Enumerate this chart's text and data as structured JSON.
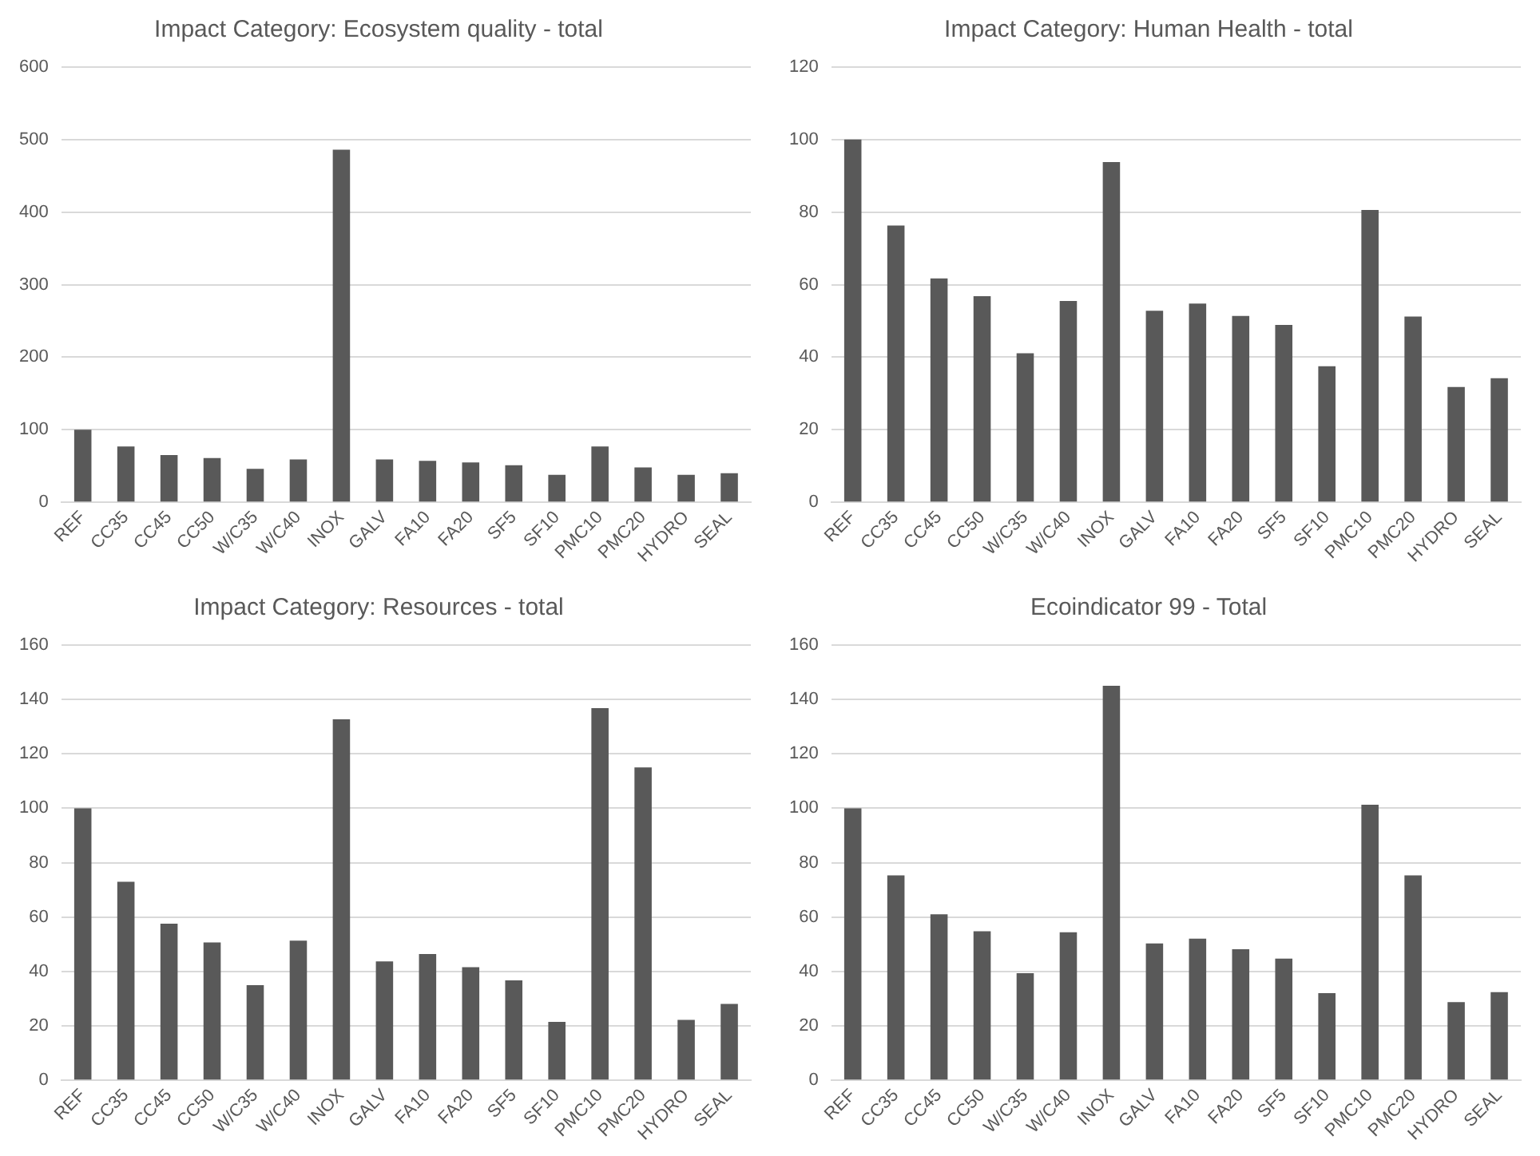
{
  "chart_data": [
    {
      "type": "bar",
      "title": "Impact Category: Ecosystem quality - total",
      "categories": [
        "REF",
        "CC35",
        "CC45",
        "CC50",
        "W/C35",
        "W/C40",
        "INOX",
        "GALV",
        "FA10",
        "FA20",
        "SF5",
        "SF10",
        "PMC10",
        "PMC20",
        "HYDRO",
        "SEAL"
      ],
      "color": "#595959",
      "values": [
        100,
        77,
        65,
        61,
        46,
        59,
        486,
        59,
        57,
        55,
        51,
        38,
        77,
        48,
        38,
        40
      ],
      "ylim": [
        0,
        600
      ],
      "yticks": [
        0,
        100,
        200,
        300,
        400,
        500,
        600
      ],
      "grid": "y",
      "legend": false
    },
    {
      "type": "bar",
      "title": "Impact Category: Human Health - total",
      "categories": [
        "REF",
        "CC35",
        "CC45",
        "CC50",
        "W/C35",
        "W/C40",
        "INOX",
        "GALV",
        "FA10",
        "FA20",
        "SF5",
        "SF10",
        "PMC10",
        "PMC20",
        "HYDRO",
        "SEAL"
      ],
      "color": "#595959",
      "values": [
        100,
        76.3,
        61.7,
        56.8,
        41.1,
        55.5,
        93.8,
        52.8,
        54.8,
        51.4,
        48.9,
        37.5,
        80.6,
        51.2,
        31.8,
        34.2
      ],
      "ylim": [
        0,
        120
      ],
      "yticks": [
        0,
        20,
        40,
        60,
        80,
        100,
        120
      ],
      "grid": "y",
      "legend": false
    },
    {
      "type": "bar",
      "title": "Impact Category: Resources - total",
      "categories": [
        "REF",
        "CC35",
        "CC45",
        "CC50",
        "W/C35",
        "W/C40",
        "INOX",
        "GALV",
        "FA10",
        "FA20",
        "SF5",
        "SF10",
        "PMC10",
        "PMC20",
        "HYDRO",
        "SEAL"
      ],
      "color": "#595959",
      "values": [
        100,
        73,
        57.6,
        50.7,
        35,
        51.3,
        132.7,
        43.7,
        46.4,
        41.6,
        36.7,
        21.5,
        136.8,
        115,
        22.2,
        28.1
      ],
      "ylim": [
        0,
        160
      ],
      "yticks": [
        0,
        20,
        40,
        60,
        80,
        100,
        120,
        140,
        160
      ],
      "grid": "y",
      "legend": false
    },
    {
      "type": "bar",
      "title": "Ecoindicator 99 - Total",
      "categories": [
        "REF",
        "CC35",
        "CC45",
        "CC50",
        "W/C35",
        "W/C40",
        "INOX",
        "GALV",
        "FA10",
        "FA20",
        "SF5",
        "SF10",
        "PMC10",
        "PMC20",
        "HYDRO",
        "SEAL"
      ],
      "color": "#595959",
      "values": [
        100,
        75.3,
        61,
        54.8,
        39.4,
        54.4,
        145,
        50.3,
        52.1,
        48.2,
        44.7,
        32,
        101.3,
        75.3,
        28.7,
        32.4
      ],
      "ylim": [
        0,
        160
      ],
      "yticks": [
        0,
        20,
        40,
        60,
        80,
        100,
        120,
        140,
        160
      ],
      "grid": "y",
      "legend": false
    }
  ]
}
